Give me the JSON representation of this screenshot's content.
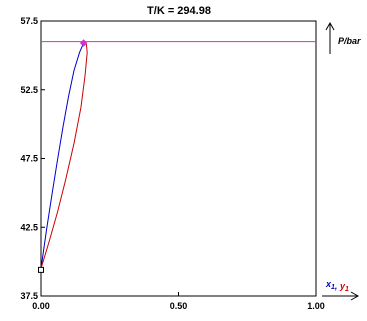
{
  "chart_data": {
    "type": "line",
    "title": "T/K = 294.98",
    "ylabel": "P/bar",
    "xlabel_parts": [
      {
        "text": "x",
        "sub": "1",
        "color": "#0000cc"
      },
      {
        "text": ", ",
        "sub": "",
        "color": "#0000cc"
      },
      {
        "text": "y",
        "sub": "1",
        "color": "#cc0000"
      }
    ],
    "x_ticks": [
      "0.00",
      "0.50",
      "1.00"
    ],
    "x_tick_values": [
      0,
      0.5,
      1
    ],
    "y_ticks": [
      "37.5",
      "42.5",
      "47.5",
      "52.5",
      "57.5"
    ],
    "y_tick_values": [
      37.5,
      42.5,
      47.5,
      52.5,
      57.5
    ],
    "xlim": [
      0,
      1
    ],
    "ylim": [
      37.5,
      57.5
    ],
    "grid": false,
    "series": [
      {
        "color": "#0000cc",
        "x": [
          0.0,
          0.02,
          0.04,
          0.06,
          0.08,
          0.1,
          0.12,
          0.14,
          0.155
        ],
        "y": [
          39.5,
          42.3,
          44.9,
          47.4,
          49.8,
          52.0,
          53.9,
          55.2,
          55.9
        ]
      },
      {
        "color": "#cc0000",
        "x": [
          0.0,
          0.03,
          0.06,
          0.09,
          0.12,
          0.145,
          0.16,
          0.168,
          0.165,
          0.155
        ],
        "y": [
          39.5,
          41.5,
          43.6,
          46.0,
          48.6,
          51.2,
          53.5,
          55.2,
          55.8,
          55.9
        ]
      }
    ],
    "reference_lines": [
      {
        "axis": "y",
        "value": 56.0,
        "color": "#cc33cc"
      }
    ],
    "markers": [
      {
        "x": 0.0,
        "y": 39.4,
        "shape": "square",
        "color": "#000000"
      },
      {
        "x": 0.155,
        "y": 55.9,
        "shape": "diamond",
        "color": "#cc33cc"
      }
    ]
  }
}
